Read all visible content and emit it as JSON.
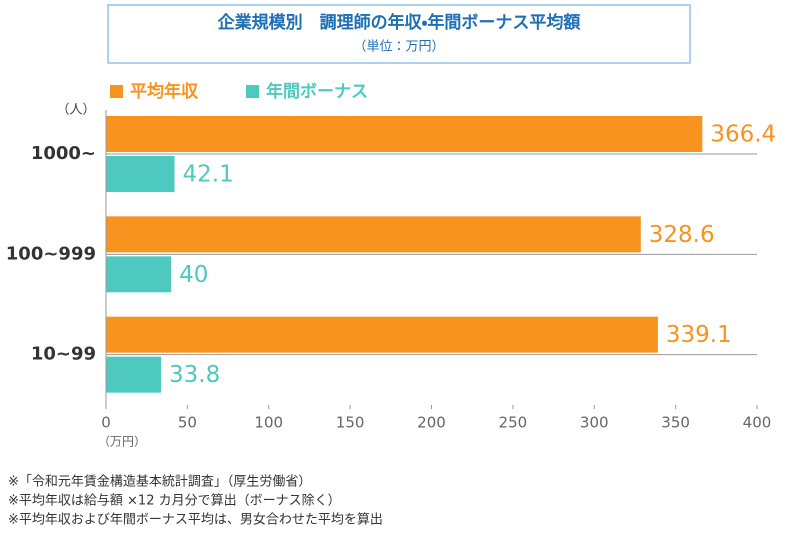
{
  "chart_data": {
    "type": "hbar",
    "title": "企業規模別　調理師の年収・年間ボーナス平均額",
    "subtitle": "（単位：万円）",
    "y_label": "（人）",
    "x_label": "（万円）",
    "categories": [
      "1000~",
      "100~999",
      "10~99"
    ],
    "series": [
      {
        "name": "平均年収",
        "color": "#f7931e",
        "values": [
          366.4,
          328.6,
          339.1
        ]
      },
      {
        "name": "年間ボーナス",
        "color": "#4ec9c0",
        "values": [
          42.1,
          40,
          33.8
        ]
      }
    ],
    "xlim": [
      0,
      400
    ],
    "xticks": [
      0,
      50,
      100,
      150,
      200,
      250,
      300,
      350,
      400
    ],
    "legend": "top-left",
    "notes": [
      "※「令和元年賃金構造基本統計調査」（厚生労働省）",
      "※平均年収は給与額 ×12 カ月分で算出（ボーナス除く）",
      "※平均年収および年間ボーナス平均は、男女合わせた平均を算出"
    ]
  }
}
